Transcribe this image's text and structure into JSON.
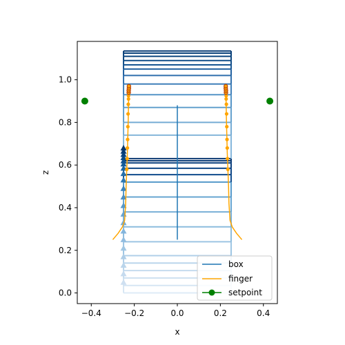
{
  "chart_data": {
    "type": "line",
    "xlabel": "x",
    "ylabel": "z",
    "xlim": [
      -0.465,
      0.465
    ],
    "ylim": [
      -0.05,
      1.18
    ],
    "xticks": [
      -0.4,
      -0.2,
      0.0,
      0.2,
      0.4
    ],
    "xtick_labels": [
      "−0.4",
      "−0.2",
      "0.0",
      "0.2",
      "0.4"
    ],
    "yticks": [
      0.0,
      0.2,
      0.4,
      0.6,
      0.8,
      1.0
    ],
    "ytick_labels": [
      "0.0",
      "0.2",
      "0.4",
      "0.6",
      "0.8",
      "1.0"
    ],
    "grid": false,
    "legend_position": "lower-right",
    "colors": {
      "box": "#1f77b4",
      "finger": "#ffa500",
      "setpoint": "#008000",
      "finger_markers_early": "#ffa500",
      "finger_markers_late": "#b8420a"
    },
    "box_frames": {
      "x_range": [
        -0.25,
        0.25
      ],
      "levels": [
        0.0,
        0.035,
        0.07,
        0.105,
        0.14,
        0.175,
        0.24,
        0.31,
        0.38,
        0.45,
        0.52,
        0.555,
        0.585,
        0.61,
        0.62,
        0.63,
        0.74,
        0.8,
        0.87,
        0.93,
        0.98,
        1.02,
        1.05,
        1.07,
        1.09,
        1.11,
        1.125,
        1.135
      ],
      "colors": [
        "#deebf7",
        "#d6e6f4",
        "#cde0f1",
        "#c4dbee",
        "#bad5eb",
        "#b0cfe8",
        "#9dc5e3",
        "#8cbcdd",
        "#78afd6",
        "#66a4d0",
        "#5599c9",
        "#0f4a8c",
        "#0d4585",
        "#0b407e",
        "#093b77",
        "#083670",
        "#84b6da",
        "#74abd4",
        "#63a0cd",
        "#5494c6",
        "#3f7fb9",
        "#2e6eac",
        "#20609f",
        "#165592",
        "#104d88",
        "#0b457e",
        "#08407a",
        "#083c75"
      ]
    },
    "box_left_markers": [
      0.05,
      0.09,
      0.13,
      0.17,
      0.21,
      0.25,
      0.29,
      0.33,
      0.37,
      0.41,
      0.45,
      0.49,
      0.53,
      0.56,
      0.585,
      0.605,
      0.62,
      0.635,
      0.65,
      0.665,
      0.68
    ],
    "box_left_marker_colors": [
      "#cfe0f1",
      "#c6dbef",
      "#bad5eb",
      "#aecde7",
      "#a0c6e3",
      "#92bde0",
      "#84b5dc",
      "#75acd7",
      "#66a3d1",
      "#5799ca",
      "#4a8fc3",
      "#3c84bc",
      "#2f79b3",
      "#2570ab",
      "#1c66a2",
      "#165d99",
      "#115390",
      "#0c4b87",
      "#09437e",
      "#083c75",
      "#08366c"
    ],
    "box_center_line": {
      "x": 0.0,
      "z_range": [
        0.25,
        0.88
      ]
    },
    "series": [
      {
        "name": "finger",
        "x": [
          -0.3,
          -0.275,
          -0.255,
          -0.245,
          -0.24,
          -0.238,
          -0.235,
          -0.232,
          -0.23,
          -0.228,
          -0.227,
          -0.226,
          -0.225,
          -0.225
        ],
        "z": [
          0.25,
          0.28,
          0.31,
          0.34,
          0.42,
          0.5,
          0.58,
          0.66,
          0.74,
          0.82,
          0.88,
          0.92,
          0.95,
          0.97
        ]
      },
      {
        "name": "finger",
        "x": [
          0.3,
          0.275,
          0.255,
          0.245,
          0.24,
          0.238,
          0.235,
          0.232,
          0.23,
          0.228,
          0.227,
          0.226,
          0.225,
          0.225
        ],
        "z": [
          0.25,
          0.28,
          0.31,
          0.34,
          0.42,
          0.5,
          0.58,
          0.66,
          0.74,
          0.82,
          0.88,
          0.92,
          0.95,
          0.97
        ]
      }
    ],
    "finger_markers_z": [
      0.58,
      0.63,
      0.68,
      0.72,
      0.78,
      0.84,
      0.885,
      0.91,
      0.925,
      0.94,
      0.95,
      0.96,
      0.97
    ],
    "finger_markers_x_offset": [
      0.235,
      0.233,
      0.232,
      0.231,
      0.23,
      0.229,
      0.228,
      0.227,
      0.227,
      0.226,
      0.226,
      0.225,
      0.225
    ],
    "setpoints": [
      {
        "x": -0.43,
        "z": 0.9
      },
      {
        "x": 0.43,
        "z": 0.9
      }
    ],
    "legend": {
      "entries": [
        "box",
        "finger",
        "setpoint"
      ]
    }
  }
}
